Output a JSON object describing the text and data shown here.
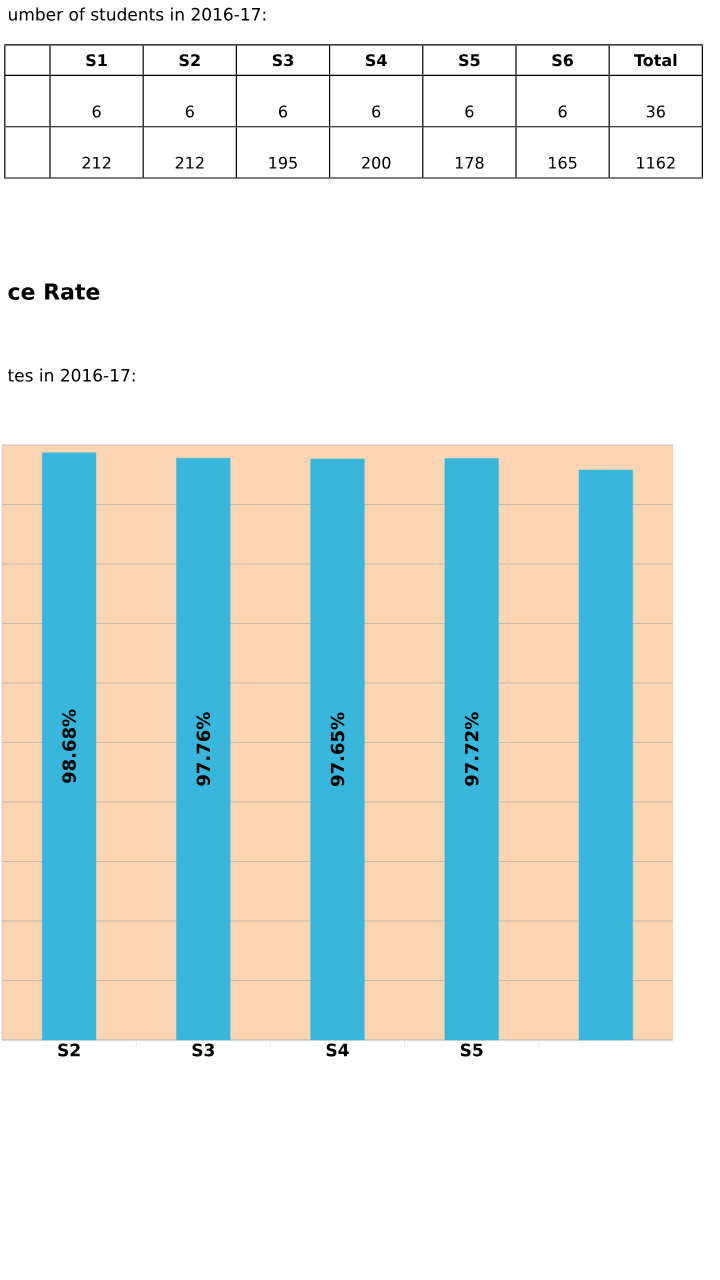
{
  "chart_data": [
    {
      "type": "other",
      "title": "umber of students in 2016-17:",
      "categories": [
        "S1",
        "S2",
        "S3",
        "S4",
        "S5",
        "S6",
        "Total"
      ],
      "series": [
        {
          "values": [
            6,
            6,
            6,
            6,
            6,
            6,
            36
          ]
        },
        {
          "values": [
            212,
            212,
            195,
            200,
            178,
            165,
            1162
          ]
        }
      ],
      "data_labels": true
    },
    {
      "type": "bar",
      "title": "ce Rate",
      "subtitle": "tes in 2016-17:",
      "categories": [
        "S2",
        "S3",
        "S4",
        "S5",
        null
      ],
      "values": [
        98.68,
        97.76,
        97.65,
        97.72,
        95.8
      ],
      "value_labels": [
        "98.68%",
        "97.76%",
        "97.65%",
        "97.72%",
        null
      ],
      "color": "#38b6dc",
      "ylim": [
        0,
        100
      ],
      "yticks": [
        {
          "value": 0,
          "label": null
        },
        {
          "value": 10,
          "label": null
        },
        {
          "value": 20,
          "label": null
        },
        {
          "value": 30,
          "label": null
        },
        {
          "value": 40,
          "label": null
        },
        {
          "value": 50,
          "label": null
        },
        {
          "value": 60,
          "label": null
        },
        {
          "value": 70,
          "label": null
        },
        {
          "value": 80,
          "label": null
        },
        {
          "value": 90,
          "label": null
        },
        {
          "value": 100,
          "label": null
        }
      ],
      "grid": "y",
      "tick_labels": "x"
    }
  ]
}
